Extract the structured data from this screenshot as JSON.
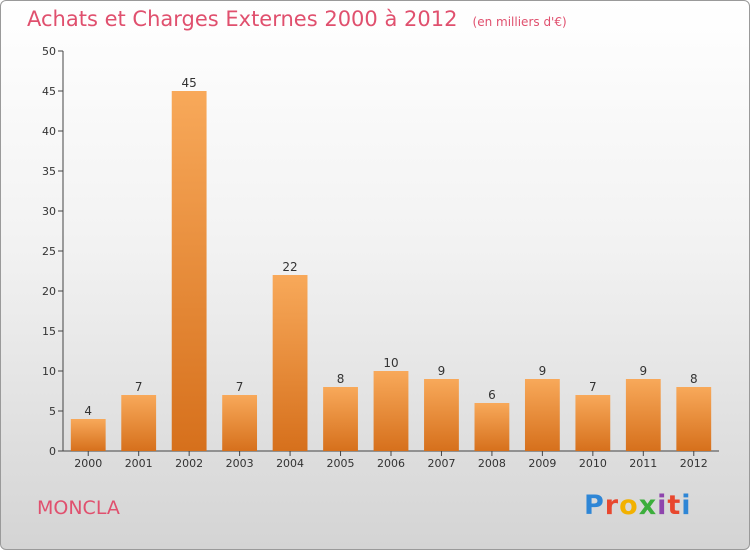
{
  "header": {
    "title": "Achats et Charges Externes 2000 à 2012",
    "subtitle": "(en milliers d'€)"
  },
  "footer": {
    "commune": "MONCLA",
    "logo_text": "Proxiti",
    "logo_colors": [
      "#2e86d6",
      "#e8472e",
      "#f2b100",
      "#3cae3c",
      "#8e44ad",
      "#e8472e",
      "#2e86d6"
    ]
  },
  "colors": {
    "accent": "#e0506e",
    "bar_top": "#f8a95a",
    "bar_bottom": "#d6701c"
  },
  "chart_data": {
    "type": "bar",
    "title": "Achats et Charges Externes 2000 à 2012",
    "subtitle": "(en milliers d'€)",
    "categories": [
      "2000",
      "2001",
      "2002",
      "2003",
      "2004",
      "2005",
      "2006",
      "2007",
      "2008",
      "2009",
      "2010",
      "2011",
      "2012"
    ],
    "values": [
      4,
      7,
      45,
      7,
      22,
      8,
      10,
      9,
      6,
      9,
      7,
      9,
      8
    ],
    "ylim": [
      0,
      50
    ],
    "yticks": [
      0,
      5,
      10,
      15,
      20,
      25,
      30,
      35,
      40,
      45,
      50
    ],
    "grid": false,
    "legend": "none"
  }
}
